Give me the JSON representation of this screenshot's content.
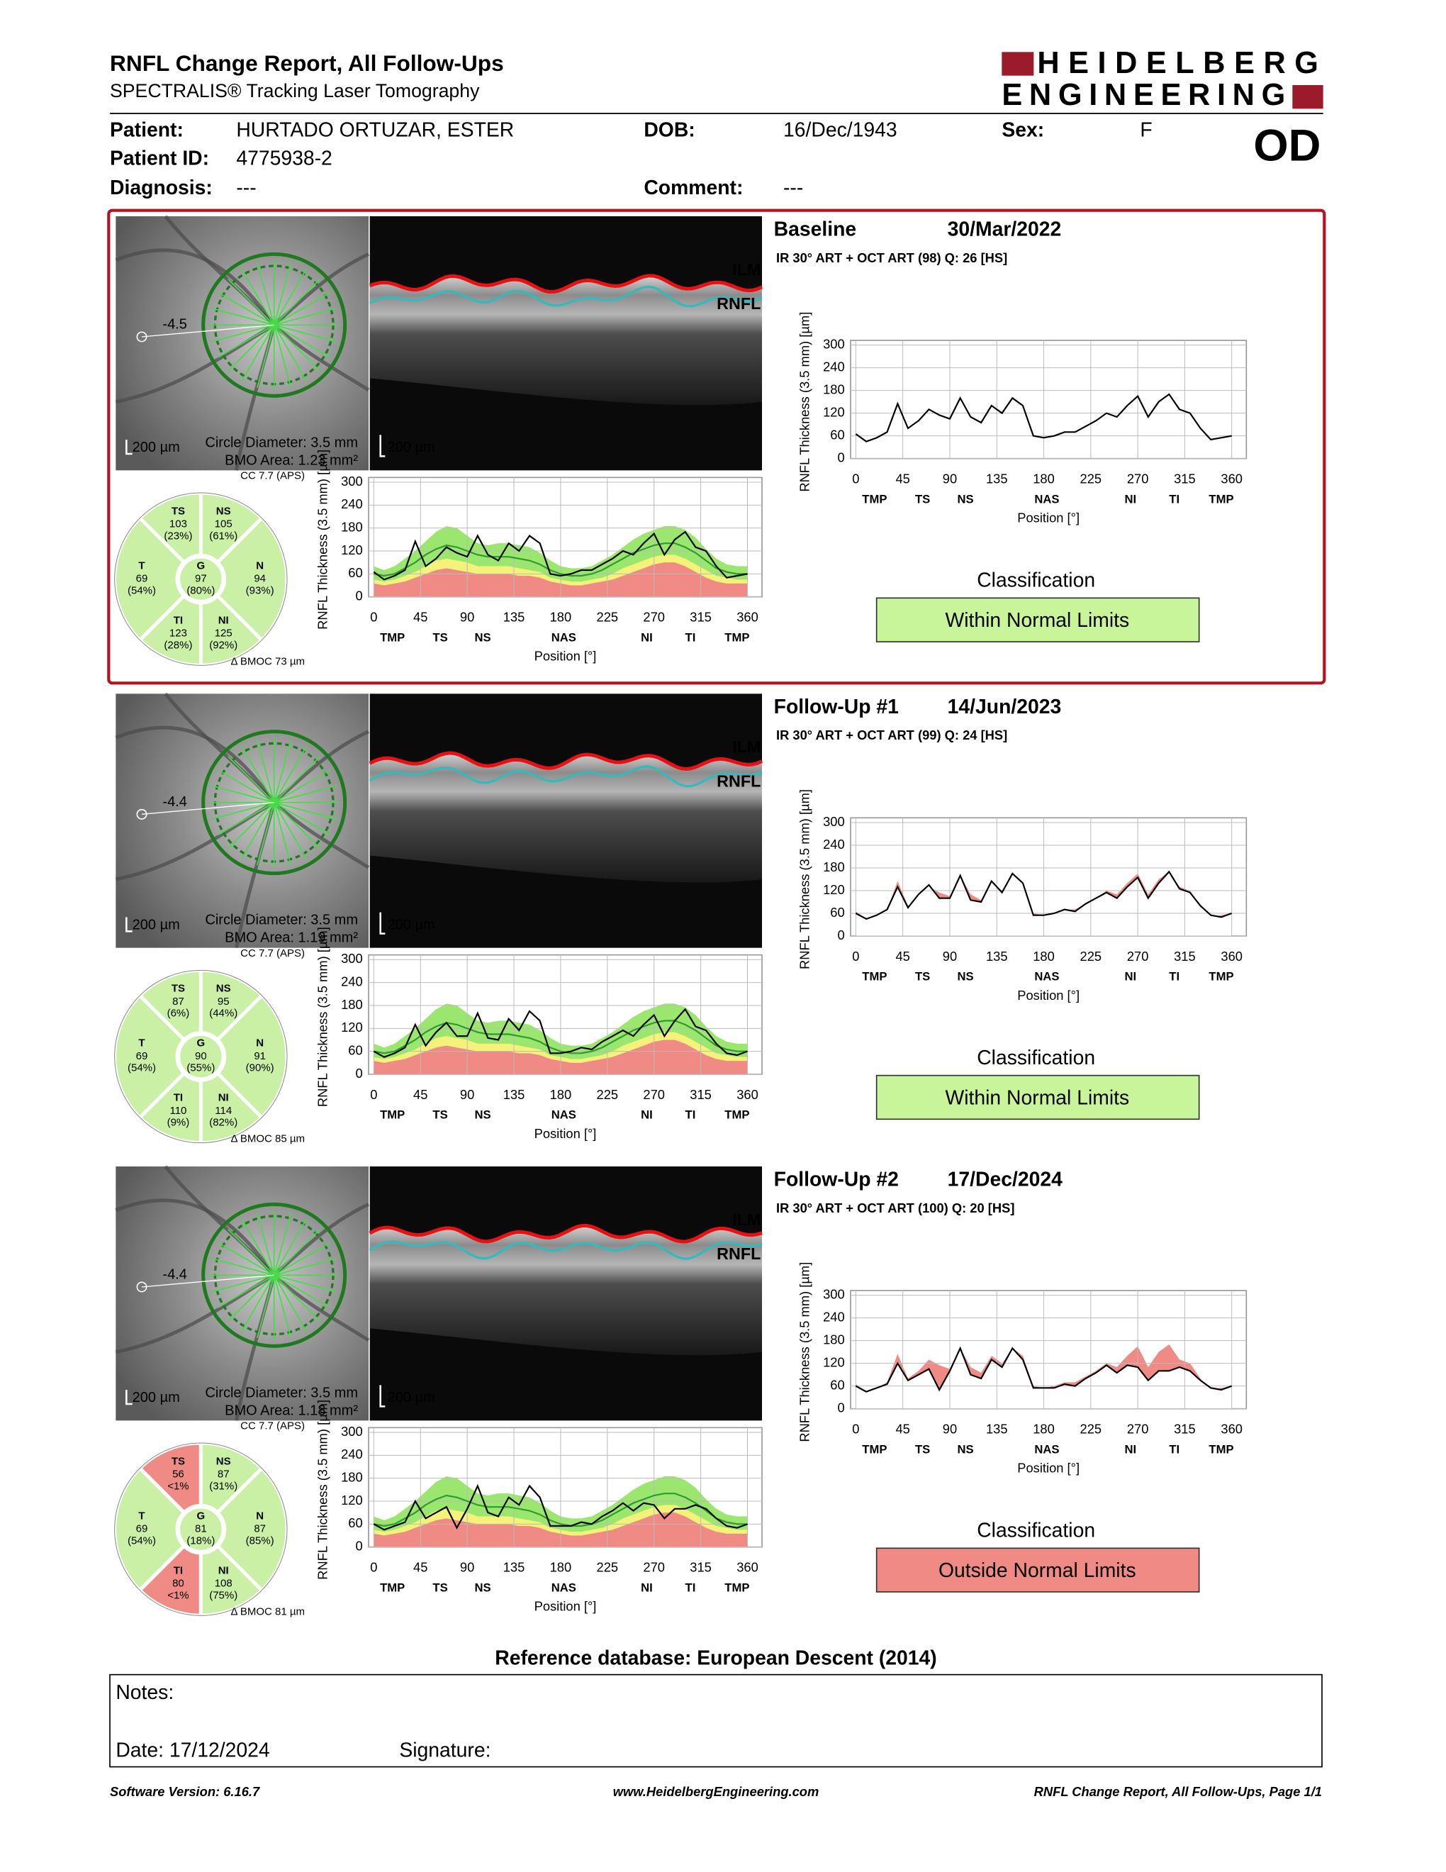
{
  "header": {
    "title": "RNFL Change Report, All Follow-Ups",
    "subtitle": "SPECTRALIS® Tracking Laser Tomography",
    "logo_line1": "HEIDELBERG",
    "logo_line2": "ENGINEERING",
    "eye": "OD"
  },
  "patient": [
    {
      "label": "Patient:",
      "value": "HURTADO ORTUZAR, ESTER"
    },
    {
      "label": "DOB:",
      "value": "16/Dec/1943"
    },
    {
      "label": "Sex:",
      "value": "F"
    },
    {
      "label": "Patient ID:",
      "value": "4775938-2"
    },
    {
      "label": "Diagnosis:",
      "value": "---"
    },
    {
      "label": "Comment:",
      "value": "---"
    }
  ],
  "chart_axes": {
    "ylabel": "RNFL Thickness (3.5 mm) [µm]",
    "xlabel": "Position [°]",
    "xlim": [
      -5,
      374
    ],
    "ylim": [
      0,
      300
    ],
    "xticks": [
      0,
      45,
      90,
      135,
      180,
      225,
      270,
      315,
      360
    ],
    "yticks": [
      0,
      60,
      120,
      180,
      240,
      300
    ],
    "regions": [
      {
        "value": 18,
        "label": "TMP"
      },
      {
        "value": 64,
        "label": "TS"
      },
      {
        "value": 105,
        "label": "NS"
      },
      {
        "value": 183,
        "label": "NAS"
      },
      {
        "value": 263,
        "label": "NI"
      },
      {
        "value": 305,
        "label": "TI"
      },
      {
        "value": 350,
        "label": "TMP"
      }
    ]
  },
  "reference": {
    "x": [
      0,
      10,
      20,
      30,
      40,
      50,
      60,
      70,
      80,
      90,
      100,
      110,
      120,
      130,
      140,
      150,
      160,
      170,
      180,
      190,
      200,
      210,
      220,
      230,
      240,
      250,
      260,
      270,
      280,
      290,
      300,
      310,
      320,
      330,
      340,
      350,
      360
    ],
    "upper": [
      80,
      70,
      80,
      100,
      120,
      145,
      170,
      185,
      180,
      160,
      140,
      135,
      140,
      140,
      135,
      130,
      115,
      95,
      80,
      75,
      75,
      80,
      95,
      110,
      130,
      150,
      165,
      175,
      185,
      185,
      175,
      155,
      125,
      100,
      85,
      80,
      80
    ],
    "lower5": [
      45,
      40,
      45,
      55,
      65,
      80,
      95,
      100,
      95,
      90,
      80,
      80,
      80,
      80,
      75,
      70,
      65,
      50,
      45,
      40,
      40,
      45,
      50,
      60,
      75,
      85,
      95,
      105,
      110,
      110,
      100,
      85,
      70,
      55,
      50,
      45,
      45
    ],
    "lower1": [
      35,
      30,
      35,
      40,
      50,
      60,
      70,
      75,
      70,
      65,
      60,
      60,
      60,
      60,
      55,
      55,
      50,
      40,
      35,
      30,
      30,
      35,
      40,
      45,
      55,
      65,
      75,
      85,
      90,
      90,
      80,
      65,
      50,
      40,
      35,
      35,
      35
    ],
    "mean": [
      60,
      55,
      60,
      75,
      90,
      110,
      125,
      135,
      130,
      120,
      110,
      105,
      105,
      105,
      100,
      95,
      85,
      70,
      60,
      55,
      55,
      60,
      70,
      85,
      100,
      115,
      125,
      135,
      140,
      140,
      130,
      115,
      95,
      75,
      65,
      60,
      60
    ],
    "colors": {
      "upper": "#9be66e",
      "lower5": "#f4f27a",
      "lower1": "#f08a84",
      "mean": "#2c9c2c",
      "change": "#f08a84"
    }
  },
  "exams": [
    {
      "label": "Baseline",
      "date": "30/Mar/2022",
      "scan": "IR 30° ART + OCT ART (98) Q: 26 [HS]",
      "offset": "-4.5",
      "scale": "200 µm",
      "circle": "Circle Diameter: 3.5 mm",
      "bmo": "BMO Area: 1.23 mm²",
      "ilm": "ILM",
      "rnfl_label": "RNFL",
      "oct_scale": "200 µm",
      "cc": "CC 7.7 (APS)",
      "bmoc": "Δ BMOC 73 µm",
      "sectors": [
        {
          "name": "TS",
          "value": 103,
          "percentile": "(23%)",
          "color": "#c9f0a4"
        },
        {
          "name": "NS",
          "value": 105,
          "percentile": "(61%)",
          "color": "#c9f0a4"
        },
        {
          "name": "T",
          "value": 69,
          "percentile": "(54%)",
          "color": "#c9f0a4"
        },
        {
          "name": "G",
          "value": 97,
          "percentile": "(80%)",
          "color": "#c9f0a4"
        },
        {
          "name": "N",
          "value": 94,
          "percentile": "(93%)",
          "color": "#c9f0a4"
        },
        {
          "name": "TI",
          "value": 123,
          "percentile": "(28%)",
          "color": "#c9f0a4"
        },
        {
          "name": "NI",
          "value": 125,
          "percentile": "(92%)",
          "color": "#c9f0a4"
        }
      ],
      "values": [
        65,
        45,
        55,
        70,
        145,
        80,
        100,
        130,
        115,
        105,
        160,
        110,
        95,
        140,
        120,
        160,
        140,
        60,
        55,
        60,
        70,
        70,
        85,
        100,
        120,
        110,
        140,
        165,
        110,
        150,
        170,
        130,
        120,
        80,
        50,
        55,
        60
      ],
      "classification_title": "Classification",
      "classification": "Within Normal Limits",
      "classification_color": "#c9f59a"
    },
    {
      "label": "Follow-Up #1",
      "date": "14/Jun/2023",
      "scan": "IR 30° ART + OCT ART (99) Q: 24 [HS]",
      "offset": "-4.4",
      "scale": "200 µm",
      "circle": "Circle Diameter: 3.5 mm",
      "bmo": "BMO Area: 1.19 mm²",
      "ilm": "ILM",
      "rnfl_label": "RNFL",
      "oct_scale": "200 µm",
      "cc": "CC 7.7 (APS)",
      "bmoc": "Δ BMOC 85 µm",
      "sectors": [
        {
          "name": "TS",
          "value": 87,
          "percentile": "(6%)",
          "color": "#c9f0a4"
        },
        {
          "name": "NS",
          "value": 95,
          "percentile": "(44%)",
          "color": "#c9f0a4"
        },
        {
          "name": "T",
          "value": 69,
          "percentile": "(54%)",
          "color": "#c9f0a4"
        },
        {
          "name": "G",
          "value": 90,
          "percentile": "(55%)",
          "color": "#c9f0a4"
        },
        {
          "name": "N",
          "value": 91,
          "percentile": "(90%)",
          "color": "#c9f0a4"
        },
        {
          "name": "TI",
          "value": 110,
          "percentile": "(9%)",
          "color": "#c9f0a4"
        },
        {
          "name": "NI",
          "value": 114,
          "percentile": "(82%)",
          "color": "#c9f0a4"
        }
      ],
      "values": [
        60,
        45,
        55,
        70,
        130,
        75,
        110,
        135,
        100,
        100,
        160,
        95,
        90,
        145,
        115,
        165,
        140,
        55,
        55,
        60,
        70,
        65,
        85,
        100,
        115,
        100,
        130,
        155,
        100,
        140,
        170,
        125,
        115,
        80,
        55,
        50,
        60
      ],
      "classification_title": "Classification",
      "classification": "Within Normal Limits",
      "classification_color": "#c9f59a"
    },
    {
      "label": "Follow-Up #2",
      "date": "17/Dec/2024",
      "scan": "IR 30° ART + OCT ART (100) Q: 20 [HS]",
      "offset": "-4.4",
      "scale": "200 µm",
      "circle": "Circle Diameter: 3.5 mm",
      "bmo": "BMO Area: 1.18 mm²",
      "ilm": "ILM",
      "rnfl_label": "RNFL",
      "oct_scale": "200 µm",
      "cc": "CC 7.7 (APS)",
      "bmoc": "Δ BMOC 81 µm",
      "sectors": [
        {
          "name": "TS",
          "value": 56,
          "percentile": "<1%",
          "color": "#f08a84"
        },
        {
          "name": "NS",
          "value": 87,
          "percentile": "(31%)",
          "color": "#c9f0a4"
        },
        {
          "name": "T",
          "value": 69,
          "percentile": "(54%)",
          "color": "#c9f0a4"
        },
        {
          "name": "G",
          "value": 81,
          "percentile": "(18%)",
          "color": "#c9f0a4"
        },
        {
          "name": "N",
          "value": 87,
          "percentile": "(85%)",
          "color": "#c9f0a4"
        },
        {
          "name": "TI",
          "value": 80,
          "percentile": "<1%",
          "color": "#f08a84"
        },
        {
          "name": "NI",
          "value": 108,
          "percentile": "(75%)",
          "color": "#c9f0a4"
        }
      ],
      "values": [
        60,
        45,
        55,
        65,
        120,
        75,
        90,
        105,
        50,
        100,
        160,
        90,
        80,
        130,
        110,
        160,
        130,
        55,
        55,
        55,
        65,
        60,
        80,
        95,
        115,
        95,
        115,
        110,
        75,
        100,
        100,
        110,
        100,
        75,
        55,
        50,
        60
      ],
      "classification_title": "Classification",
      "classification": "Outside Normal Limits",
      "classification_color": "#f08a84"
    }
  ],
  "reference_db": "Reference database: European Descent (2014)",
  "notes": {
    "label": "Notes:",
    "date": "Date: 17/12/2024",
    "signature": "Signature:"
  },
  "footer": {
    "left": "Software Version: 6.16.7",
    "center": "www.HeidelbergEngineering.com",
    "right": "RNFL Change Report, All Follow-Ups, Page 1/1"
  }
}
